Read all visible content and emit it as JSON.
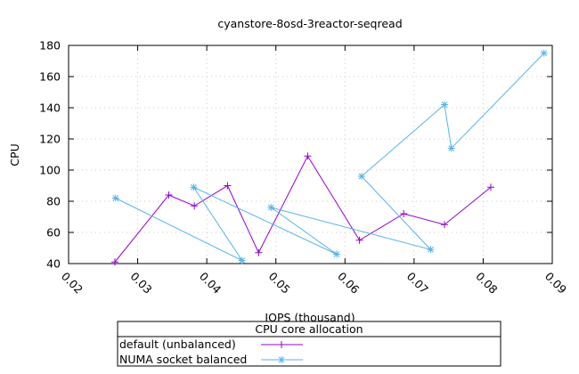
{
  "chart_data": {
    "type": "line",
    "title": "cyanstore-8osd-3reactor-seqread",
    "xlabel": "IOPS (thousand)",
    "ylabel": "CPU",
    "xlim": [
      0.02,
      0.09
    ],
    "ylim": [
      40,
      180
    ],
    "xticks": [
      "0.02",
      "0.03",
      "0.04",
      "0.05",
      "0.06",
      "0.07",
      "0.08",
      "0.09"
    ],
    "yticks": [
      "40",
      "60",
      "80",
      "100",
      "120",
      "140",
      "160",
      "180"
    ],
    "grid": true,
    "legend": {
      "title": "CPU core allocation",
      "placement": "bottom-center"
    },
    "series": [
      {
        "name": "default (unbalanced)",
        "color": "#9400d3",
        "marker": "plus",
        "x": [
          0.0267,
          0.0345,
          0.0382,
          0.043,
          0.0475,
          0.0546,
          0.0621,
          0.0685,
          0.0744,
          0.0811
        ],
        "y": [
          41,
          84,
          77,
          90,
          47,
          109,
          55,
          72,
          65,
          89
        ]
      },
      {
        "name": "NUMA socket balanced",
        "color": "#56b4e9",
        "marker": "star",
        "x": [
          0.0268,
          0.0451,
          0.0381,
          0.0588,
          0.0493,
          0.0724,
          0.0624,
          0.0744,
          0.0754,
          0.0888
        ],
        "y": [
          82,
          42,
          89,
          46,
          76,
          49,
          96,
          142,
          114,
          175
        ]
      }
    ]
  }
}
